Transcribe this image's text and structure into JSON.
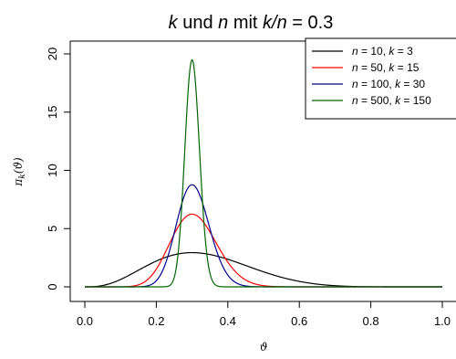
{
  "chart_data": {
    "type": "line",
    "title": {
      "pre": "k",
      "mid1": " und ",
      "n": "n",
      "mid2": " mit ",
      "ratio": "k/n",
      "post": " = 0.3"
    },
    "xlabel": "ϑ",
    "ylabel": {
      "pi": "π",
      "sub": "k",
      "arg": "(ϑ)"
    },
    "xlim": [
      0,
      1
    ],
    "ylim": [
      0,
      20
    ],
    "xticks": [
      "0.0",
      "0.2",
      "0.4",
      "0.6",
      "0.8",
      "1.0"
    ],
    "yticks": [
      "0",
      "5",
      "10",
      "15",
      "20"
    ],
    "legend_position": "top-right",
    "grid": false,
    "series": [
      {
        "n": "10",
        "k": "3",
        "color": "#000000"
      },
      {
        "n": "50",
        "k": "15",
        "color": "#ff0000"
      },
      {
        "n": "100",
        "k": "30",
        "color": "#00008b"
      },
      {
        "n": "500",
        "k": "150",
        "color": "#006400"
      }
    ]
  }
}
